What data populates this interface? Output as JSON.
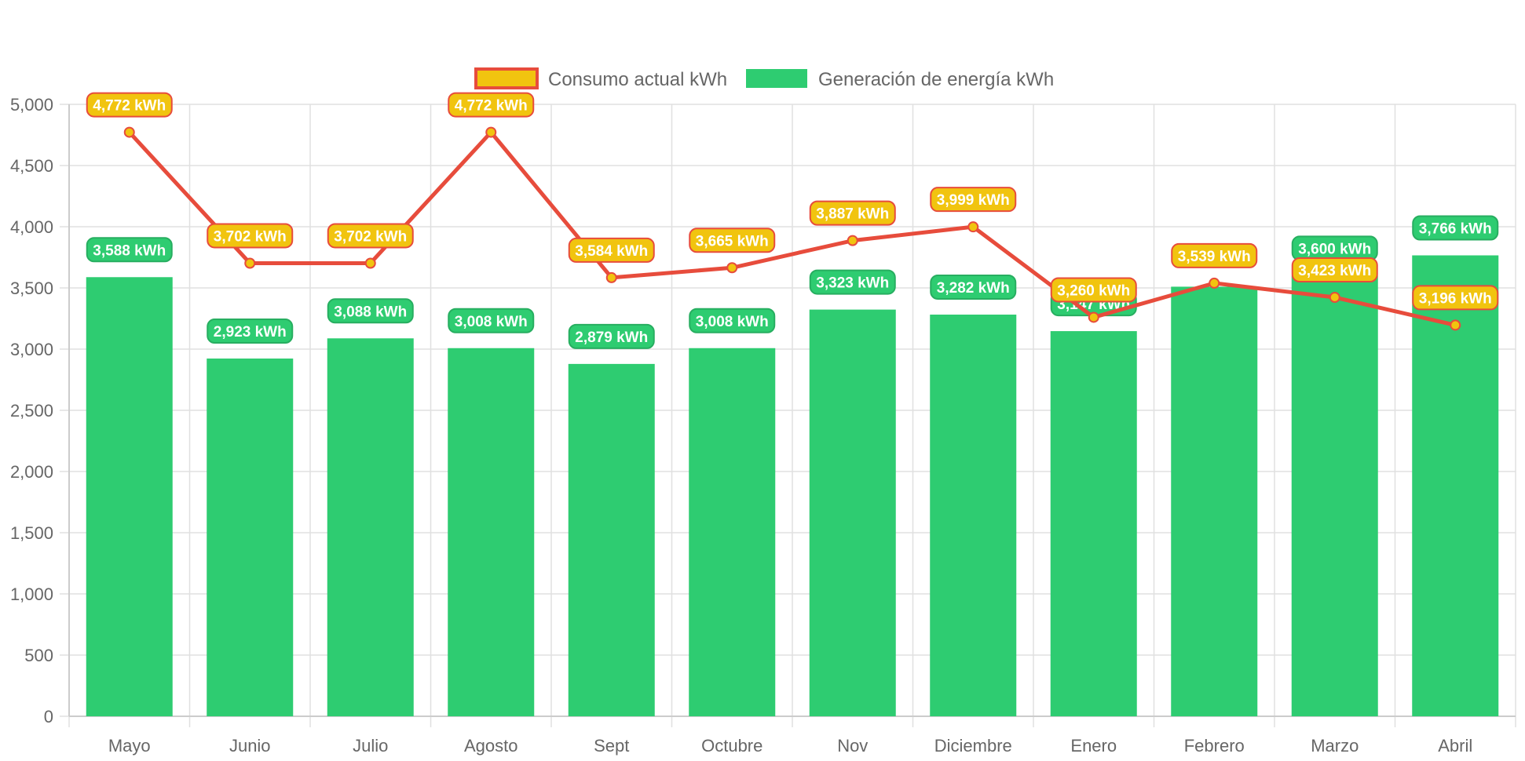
{
  "chart_data": {
    "type": "bar",
    "categories": [
      "Mayo",
      "Junio",
      "Julio",
      "Agosto",
      "Sept",
      "Octubre",
      "Nov",
      "Diciembre",
      "Enero",
      "Febrero",
      "Marzo",
      "Abril"
    ],
    "series": [
      {
        "name": "Consumo actual kWh",
        "type": "line",
        "values": [
          4772,
          3702,
          3702,
          4772,
          3584,
          3665,
          3887,
          3999,
          3260,
          3539,
          3423,
          3196
        ],
        "labels": [
          "4,772 kWh",
          "3,702 kWh",
          "3,702 kWh",
          "4,772 kWh",
          "3,584 kWh",
          "3,665 kWh",
          "3,887 kWh",
          "3,999 kWh",
          "3,260 kWh",
          "3,539 kWh",
          "3,423 kWh",
          "3,196 kWh"
        ],
        "color": "#e74c3c",
        "fill": "#f1c40f"
      },
      {
        "name": "Generación de energía kWh",
        "type": "bar",
        "values": [
          3588,
          2923,
          3088,
          3008,
          2879,
          3008,
          3323,
          3282,
          3147,
          3510,
          3600,
          3766
        ],
        "labels": [
          "3,588 kWh",
          "2,923 kWh",
          "3,088 kWh",
          "3,008 kWh",
          "2,879 kWh",
          "3,008 kWh",
          "3,323 kWh",
          "3,282 kWh",
          "3,147 kWh",
          "",
          "3,600 kWh",
          "3,766 kWh"
        ],
        "color": "#2ecc71"
      }
    ],
    "ylim": [
      0,
      5000
    ],
    "yticks": [
      "0",
      "500",
      "1,000",
      "1,500",
      "2,000",
      "2,500",
      "3,000",
      "3,500",
      "4,000",
      "4,500",
      "5,000"
    ],
    "grid": true,
    "legend": "top-center"
  }
}
